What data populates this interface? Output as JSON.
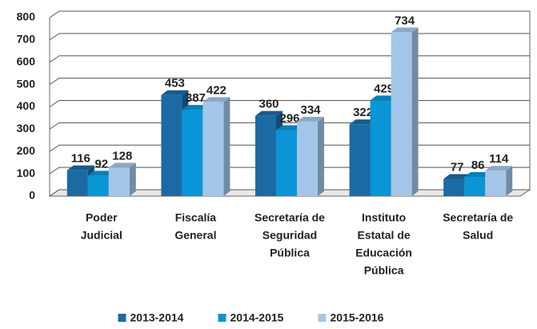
{
  "chart_data": {
    "type": "bar3d",
    "categories": [
      [
        "Poder",
        "Judicial"
      ],
      [
        "Fiscalía",
        "General"
      ],
      [
        "Secretaría de",
        "Seguridad",
        "Pública"
      ],
      [
        "Instituto",
        "Estatal de",
        "Educación",
        "Pública"
      ],
      [
        "Secretaría de",
        "Salud"
      ]
    ],
    "series": [
      {
        "name": "2013-2014",
        "color": "#1c6aa3",
        "values": [
          116,
          453,
          360,
          322,
          77
        ]
      },
      {
        "name": "2014-2015",
        "color": "#0a95d6",
        "values": [
          92,
          387,
          296,
          429,
          86
        ]
      },
      {
        "name": "2015-2016",
        "color": "#a3c6e8",
        "values": [
          128,
          422,
          334,
          734,
          114
        ]
      }
    ],
    "ylim": [
      0,
      800
    ],
    "yticks": [
      0,
      100,
      200,
      300,
      400,
      500,
      600,
      700,
      800
    ],
    "grid": true,
    "legend": "bottom"
  }
}
